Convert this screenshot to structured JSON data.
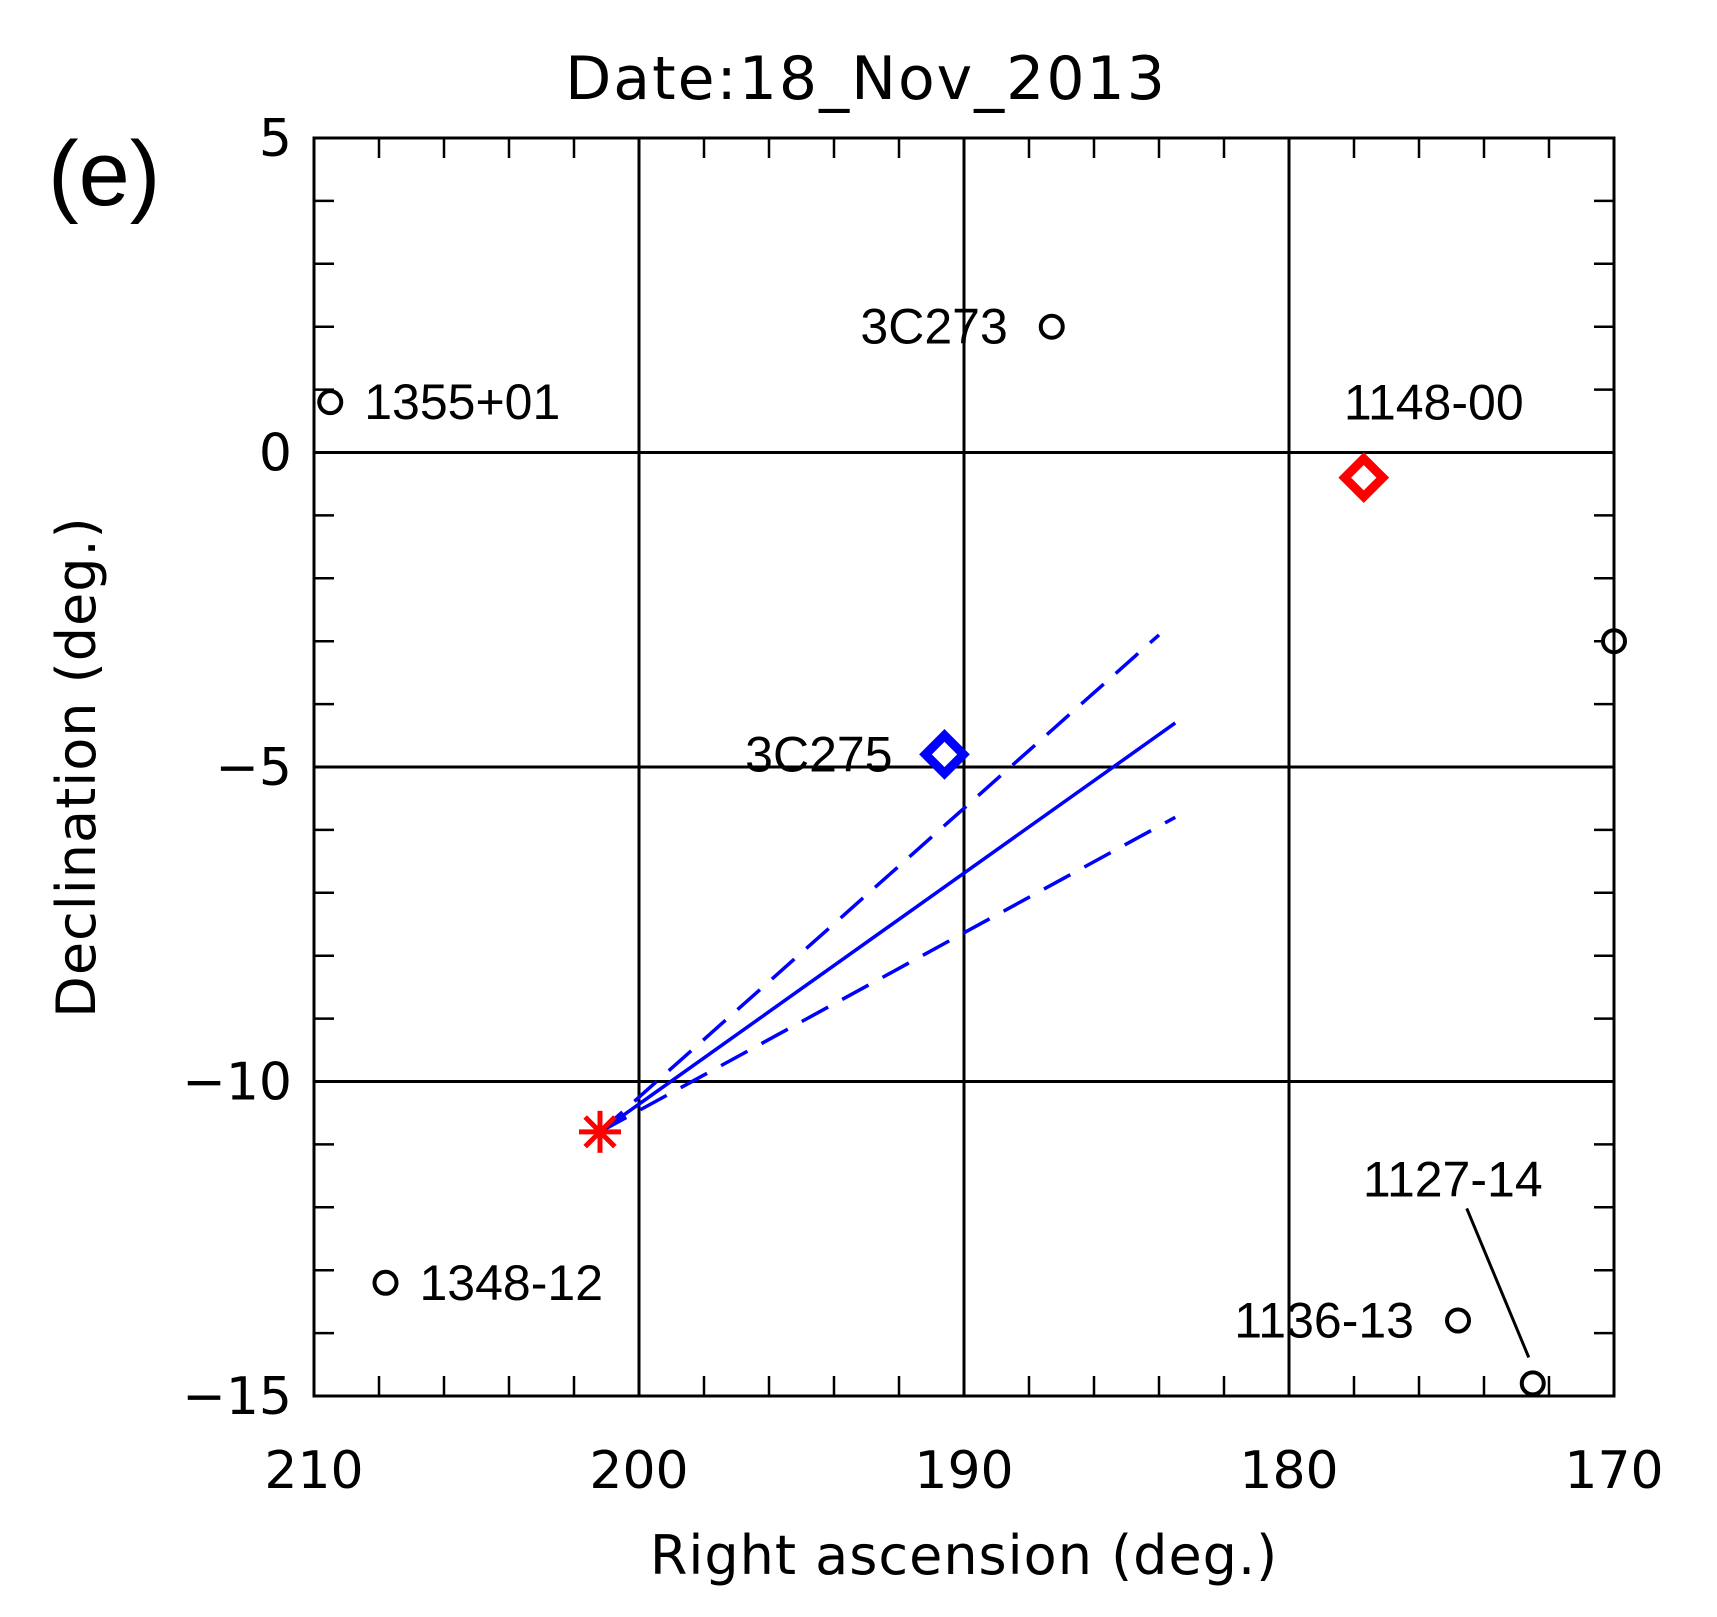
{
  "chart_data": {
    "type": "scatter",
    "title": "Date:18_Nov_2013",
    "panel_label": "(e)",
    "xlabel": "Right ascension (deg.)",
    "ylabel": "Declination (deg.)",
    "xlim": [
      210,
      170
    ],
    "ylim": [
      -15,
      5
    ],
    "x_ticks": [
      {
        "value": 210,
        "label": "210"
      },
      {
        "value": 200,
        "label": "200"
      },
      {
        "value": 190,
        "label": "190"
      },
      {
        "value": 180,
        "label": "180"
      },
      {
        "value": 170,
        "label": "170"
      }
    ],
    "y_ticks": [
      {
        "value": 5,
        "label": "5"
      },
      {
        "value": 0,
        "label": "0"
      },
      {
        "value": -5,
        "label": "−5"
      },
      {
        "value": -10,
        "label": "−10"
      },
      {
        "value": -15,
        "label": "−15"
      }
    ],
    "x_minor_step": 2,
    "y_minor_step": 1,
    "grid": true,
    "sources": [
      {
        "name": "3C273",
        "ra": 187.3,
        "dec": 2.0,
        "marker": "circle",
        "color": "#000000",
        "label_side": "left"
      },
      {
        "name": "1355+01",
        "ra": 209.5,
        "dec": 0.8,
        "marker": "circle",
        "color": "#000000",
        "label_side": "right"
      },
      {
        "name": "1148-00",
        "ra": 177.7,
        "dec": -0.4,
        "marker": "diamond",
        "color": "#ff0000",
        "label_side": "above"
      },
      {
        "name": "3C275",
        "ra": 190.6,
        "dec": -4.8,
        "marker": "diamond",
        "color": "#0000ff",
        "label_side": "left"
      },
      {
        "name": "1348-12",
        "ra": 207.8,
        "dec": -13.2,
        "marker": "circle",
        "color": "#000000",
        "label_side": "right"
      },
      {
        "name": "1136-13",
        "ra": 174.8,
        "dec": -13.8,
        "marker": "circle",
        "color": "#000000",
        "label_side": "left"
      },
      {
        "name": "1127-14",
        "ra": 172.5,
        "dec": -14.8,
        "marker": "circle",
        "color": "#000000",
        "label_side": "callout"
      }
    ],
    "unlabeled_points": [
      {
        "ra": 170.0,
        "dec": -3.0,
        "marker": "circle",
        "color": "#000000"
      }
    ],
    "sun": {
      "ra": 201.2,
      "dec": -10.8,
      "marker": "asterisk",
      "color": "#ff0000"
    },
    "lines": [
      {
        "name": "direction",
        "style": "solid",
        "color": "#0000ff",
        "x": [
          201.2,
          183.5
        ],
        "y": [
          -10.8,
          -4.3
        ]
      },
      {
        "name": "upper-bound",
        "style": "dashed",
        "color": "#0000ff",
        "x": [
          201.2,
          184.0
        ],
        "y": [
          -10.8,
          -2.9
        ]
      },
      {
        "name": "lower-bound",
        "style": "dashed",
        "color": "#0000ff",
        "x": [
          201.2,
          183.5
        ],
        "y": [
          -10.8,
          -5.8
        ]
      }
    ]
  }
}
